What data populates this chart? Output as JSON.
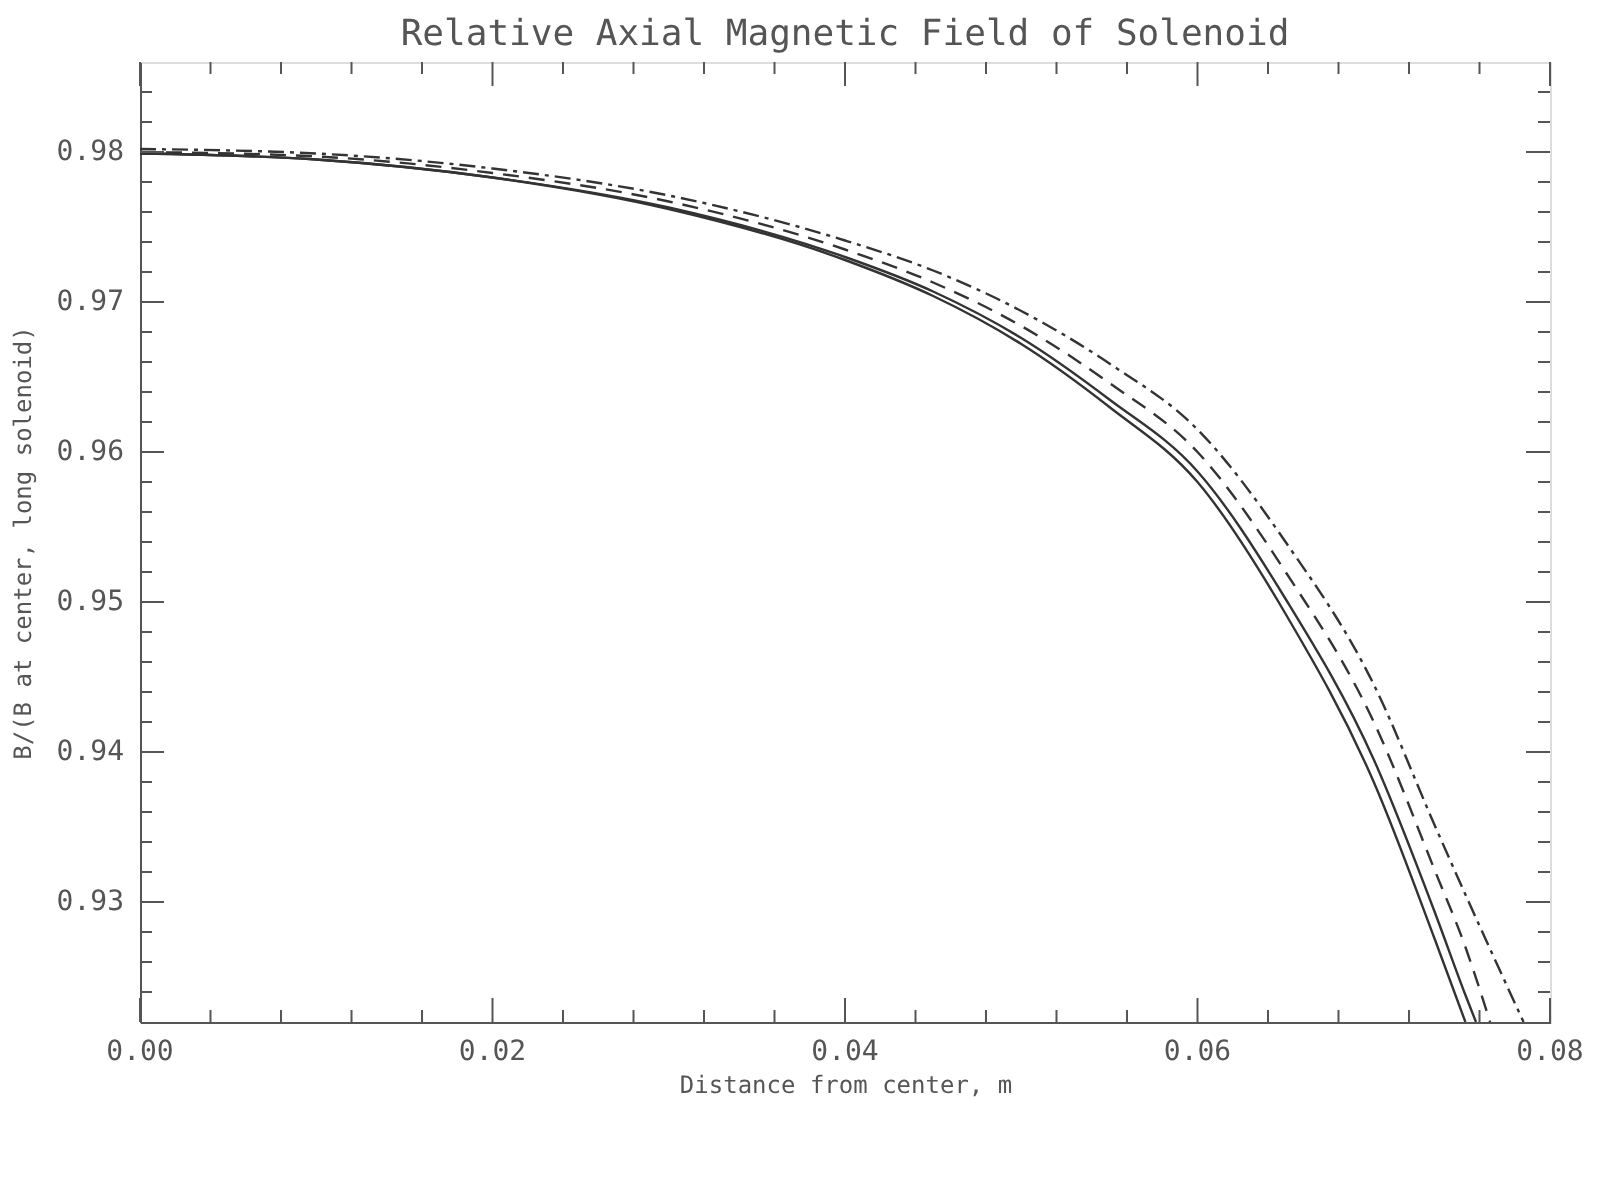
{
  "chart_data": {
    "type": "line",
    "title": "Relative Axial Magnetic Field of Solenoid",
    "xlabel": "Distance from center, m",
    "ylabel": "B/(B at center, long solenoid)",
    "xlim": [
      0,
      0.08
    ],
    "ylim": [
      0.922,
      0.986
    ],
    "xticks": [
      "0.00",
      {
        "value": 0.004,
        "label": null
      },
      {
        "value": 0.008,
        "label": null
      },
      {
        "value": 0.012,
        "label": null
      },
      {
        "value": 0.016,
        "label": null
      },
      {
        "value": 0.02,
        "label": "0.02"
      },
      {
        "value": 0.024,
        "label": null
      },
      {
        "value": 0.028,
        "label": null
      },
      {
        "value": 0.032,
        "label": null
      },
      {
        "value": 0.036,
        "label": null
      },
      {
        "value": 0.04,
        "label": "0.04"
      },
      {
        "value": 0.044,
        "label": null
      },
      {
        "value": 0.048,
        "label": null
      },
      {
        "value": 0.052,
        "label": null
      },
      {
        "value": 0.056,
        "label": null
      },
      {
        "value": 0.06,
        "label": "0.06"
      },
      {
        "value": 0.064,
        "label": null
      },
      {
        "value": 0.068,
        "label": null
      },
      {
        "value": 0.072,
        "label": null
      },
      {
        "value": 0.076,
        "label": null
      },
      {
        "value": 0.08,
        "label": "0.08"
      }
    ],
    "yticks": [
      {
        "value": 0.924,
        "label": null
      },
      {
        "value": 0.926,
        "label": null
      },
      {
        "value": 0.928,
        "label": null
      },
      0.93,
      {
        "value": 0.932,
        "label": null
      },
      {
        "value": 0.934,
        "label": null
      },
      {
        "value": 0.936,
        "label": null
      },
      {
        "value": 0.938,
        "label": null
      },
      0.94,
      {
        "value": 0.942,
        "label": null
      },
      {
        "value": 0.944,
        "label": null
      },
      {
        "value": 0.946,
        "label": null
      },
      {
        "value": 0.948,
        "label": null
      },
      0.95,
      {
        "value": 0.952,
        "label": null
      },
      {
        "value": 0.954,
        "label": null
      },
      {
        "value": 0.956,
        "label": null
      },
      {
        "value": 0.958,
        "label": null
      },
      0.96,
      {
        "value": 0.962,
        "label": null
      },
      {
        "value": 0.964,
        "label": null
      },
      {
        "value": 0.966,
        "label": null
      },
      {
        "value": 0.968,
        "label": null
      },
      0.97,
      {
        "value": 0.972,
        "label": null
      },
      {
        "value": 0.974,
        "label": null
      },
      {
        "value": 0.976,
        "label": null
      },
      {
        "value": 0.978,
        "label": null
      },
      0.98,
      {
        "value": 0.982,
        "label": null
      },
      {
        "value": 0.984,
        "label": null
      }
    ],
    "grid": false,
    "marker": "none",
    "series": [
      {
        "color": "#333333",
        "line_style": "solid",
        "x": [
          0,
          0.01,
          0.02,
          0.03,
          0.04,
          0.045,
          0.05,
          0.055,
          0.06,
          0.065,
          0.07,
          0.0735,
          0.0752
        ],
        "values": [
          0.9799,
          0.9795,
          0.9783,
          0.9762,
          0.9728,
          0.9704,
          0.9672,
          0.963,
          0.958,
          0.9492,
          0.938,
          0.9274,
          0.922
        ]
      },
      {
        "color": "#333333",
        "line_style": "solid",
        "x": [
          0,
          0.01,
          0.02,
          0.03,
          0.04,
          0.045,
          0.05,
          0.055,
          0.06,
          0.065,
          0.07,
          0.0735,
          0.0752,
          0.0758
        ],
        "values": [
          0.9799,
          0.9795,
          0.9783,
          0.9763,
          0.973,
          0.9707,
          0.9676,
          0.9635,
          0.9587,
          0.9502,
          0.9395,
          0.9292,
          0.9238,
          0.922
        ]
      },
      {
        "color": "#333333",
        "line_style": "dashed",
        "x": [
          0,
          0.01,
          0.02,
          0.03,
          0.04,
          0.045,
          0.05,
          0.055,
          0.06,
          0.065,
          0.07,
          0.0735,
          0.0752,
          0.0766
        ],
        "values": [
          0.98,
          0.9797,
          0.9786,
          0.9767,
          0.9735,
          0.9713,
          0.9684,
          0.9646,
          0.96,
          0.952,
          0.942,
          0.932,
          0.927,
          0.922
        ]
      },
      {
        "color": "#333333",
        "line_style": "dotted",
        "x": [
          0,
          0.01,
          0.02,
          0.03,
          0.04,
          0.045,
          0.05,
          0.055,
          0.06,
          0.065,
          0.07,
          0.0735,
          0.0752,
          0.0785
        ],
        "values": [
          0.9802,
          0.9799,
          0.9789,
          0.9771,
          0.9741,
          0.9721,
          0.9694,
          0.9659,
          0.9615,
          0.954,
          0.9445,
          0.935,
          0.9305,
          0.922
        ]
      }
    ]
  }
}
